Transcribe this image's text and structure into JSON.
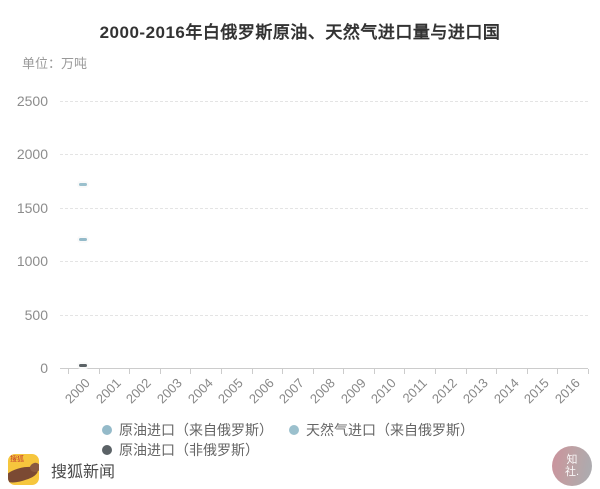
{
  "chart": {
    "title": "2000-2016年白俄罗斯原油、天然气进口量与进口国",
    "unit_label": "单位：万吨"
  },
  "chart_data": {
    "type": "line",
    "title": "2000-2016年白俄罗斯原油、天然气进口量与进口国",
    "unit": "万吨",
    "categories": [
      "2000",
      "2001",
      "2002",
      "2003",
      "2004",
      "2005",
      "2006",
      "2007",
      "2008",
      "2009",
      "2010",
      "2011",
      "2012",
      "2013",
      "2014",
      "2015",
      "2016"
    ],
    "yticks": [
      0,
      500,
      1000,
      1500,
      2000,
      2500
    ],
    "ylim": [
      0,
      2500
    ],
    "grid": "dashed-horizontal",
    "legend_position": "bottom",
    "series": [
      {
        "name": "原油进口（来自俄罗斯）",
        "color": "#94bac9",
        "marker": "dash",
        "points": [
          {
            "x": "2000",
            "y": 1200
          }
        ]
      },
      {
        "name": "天然气进口（来自俄罗斯）",
        "color": "#9bc0cd",
        "marker": "dash",
        "points": [
          {
            "x": "2000",
            "y": 1720
          }
        ]
      },
      {
        "name": "原油进口（非俄罗斯）",
        "color": "#5b6266",
        "marker": "dash",
        "points": [
          {
            "x": "2000",
            "y": 20
          }
        ]
      }
    ]
  },
  "footer": {
    "brand": "搜狐新闻",
    "app_icon_chars": "搜狐"
  },
  "watermark": {
    "line1": "知",
    "line2": "社."
  },
  "colors": {
    "title_text": "#333333",
    "axis_text": "#8c8c8c",
    "gridline": "#e4e4e4",
    "axis_line": "#cccccc",
    "legend_text": "#666666",
    "series_blue": "#94bac9",
    "series_dark": "#5b6266",
    "sohu_yellow": "#f6c63d"
  }
}
